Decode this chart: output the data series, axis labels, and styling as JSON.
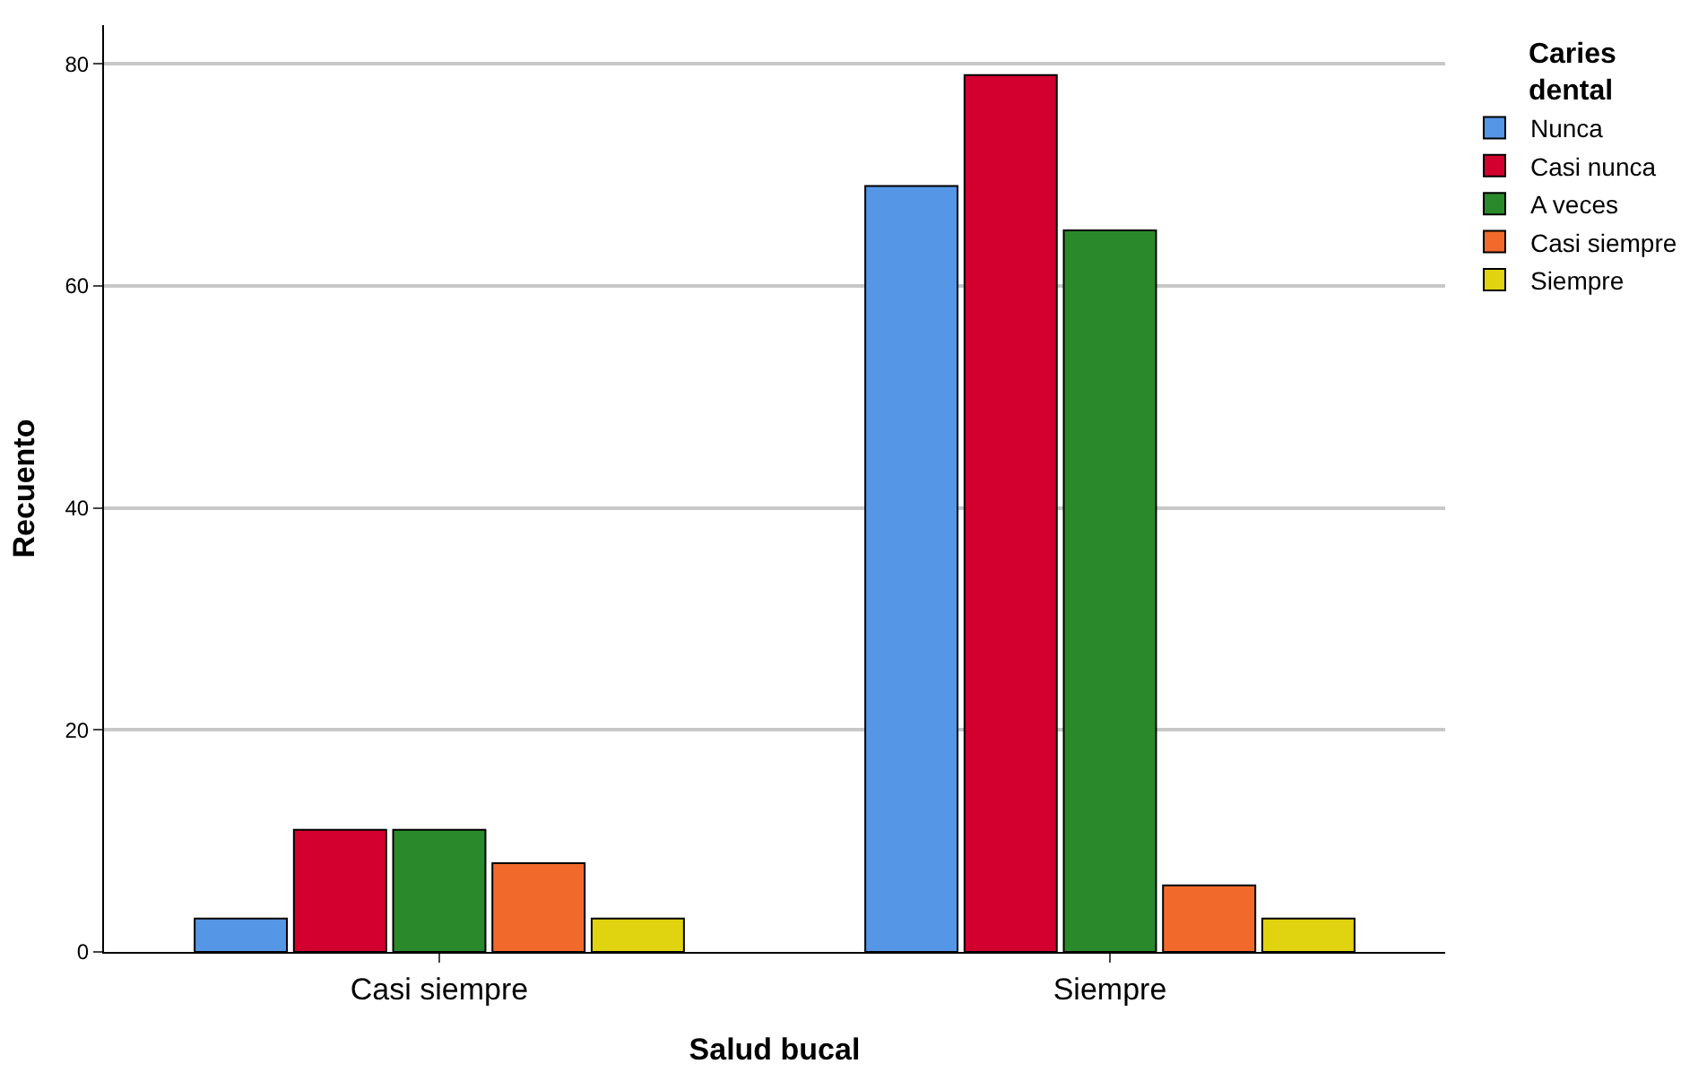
{
  "chart_data": {
    "type": "bar",
    "xlabel": "Salud bucal",
    "ylabel": "Recuento",
    "legend_title": "Caries dental",
    "categories": [
      "Casi siempre",
      "Siempre"
    ],
    "series": [
      {
        "name": "Nunca",
        "color": "#5596e6",
        "values": [
          3,
          69
        ]
      },
      {
        "name": "Casi nunca",
        "color": "#d3002f",
        "values": [
          11,
          79
        ]
      },
      {
        "name": "A veces",
        "color": "#2a8a2b",
        "values": [
          11,
          65
        ]
      },
      {
        "name": "Casi siempre",
        "color": "#f26a2b",
        "values": [
          8,
          6
        ]
      },
      {
        "name": "Siempre",
        "color": "#e0d30f",
        "values": [
          3,
          3
        ]
      }
    ],
    "ylim": [
      0,
      83.5
    ],
    "yticks": [
      0,
      20,
      40,
      60,
      80
    ],
    "grid": "y",
    "legend": "top right"
  }
}
